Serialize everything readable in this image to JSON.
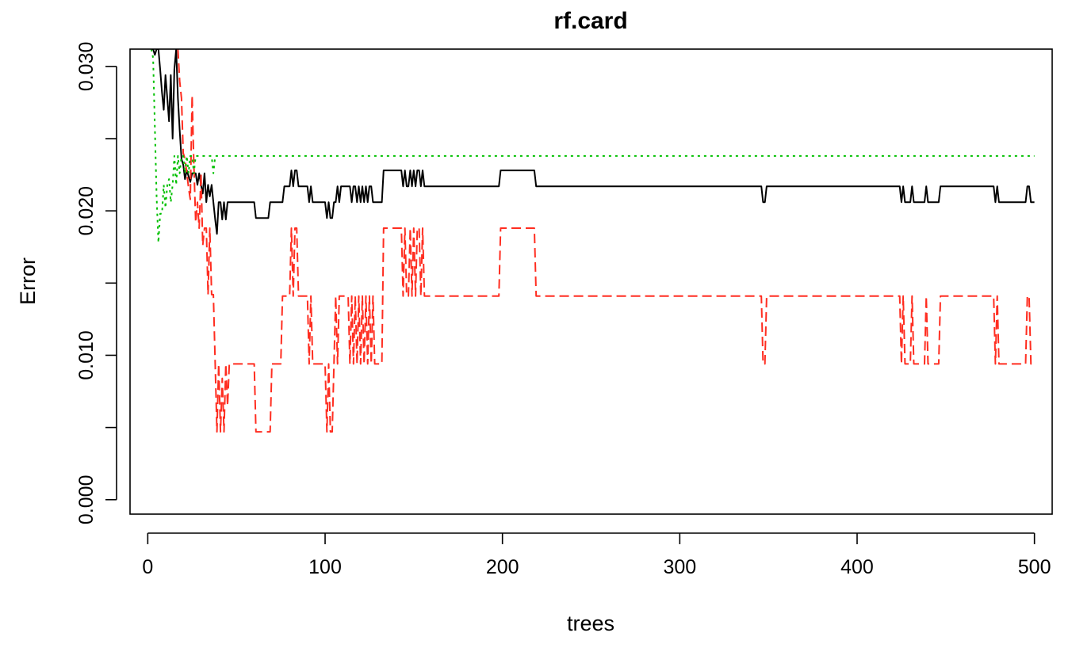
{
  "chart_data": {
    "type": "line",
    "title": "rf.card",
    "xlabel": "trees",
    "ylabel": "Error",
    "xlim": [
      -10,
      510
    ],
    "ylim": [
      -0.001,
      0.0312
    ],
    "x_ticks": [
      0,
      100,
      200,
      300,
      400,
      500
    ],
    "x_tick_labels": [
      "0",
      "100",
      "200",
      "300",
      "400",
      "500"
    ],
    "y_ticks": [
      0.0,
      0.005,
      0.01,
      0.015,
      0.02,
      0.025,
      0.03
    ],
    "y_tick_labels": [
      "0.000",
      "",
      "0.010",
      "",
      "0.020",
      "",
      "0.030"
    ],
    "grid": false,
    "legend": "none",
    "series": [
      {
        "color": "#000000",
        "dash": "solid",
        "points": [
          [
            2,
            0.0312
          ],
          [
            3,
            0.0312
          ],
          [
            4,
            0.0308
          ],
          [
            5,
            0.0312
          ],
          [
            6,
            0.0312
          ],
          [
            7,
            0.0298
          ],
          [
            8,
            0.0282
          ],
          [
            9,
            0.027
          ],
          [
            10,
            0.0294
          ],
          [
            11,
            0.0278
          ],
          [
            12,
            0.0262
          ],
          [
            13,
            0.0294
          ],
          [
            14,
            0.025
          ],
          [
            15,
            0.0298
          ],
          [
            16,
            0.0312
          ],
          [
            17,
            0.0278
          ],
          [
            18,
            0.0256
          ],
          [
            19,
            0.0236
          ],
          [
            20,
            0.0232
          ],
          [
            21,
            0.0222
          ],
          [
            22,
            0.0228
          ],
          [
            23,
            0.0224
          ],
          [
            24,
            0.022
          ],
          [
            25,
            0.0226
          ],
          [
            26,
            0.0226
          ],
          [
            27,
            0.0226
          ],
          [
            28,
            0.0218
          ],
          [
            29,
            0.0226
          ],
          [
            30,
            0.0218
          ],
          [
            31,
            0.0212
          ],
          [
            32,
            0.0226
          ],
          [
            33,
            0.0206
          ],
          [
            34,
            0.0218
          ],
          [
            35,
            0.021
          ],
          [
            36,
            0.0218
          ],
          [
            37,
            0.0206
          ],
          [
            38,
            0.0194
          ],
          [
            39,
            0.0184
          ],
          [
            40,
            0.0206
          ],
          [
            41,
            0.0206
          ],
          [
            42,
            0.0194
          ],
          [
            43,
            0.0206
          ],
          [
            44,
            0.0194
          ],
          [
            45,
            0.0206
          ],
          [
            47,
            0.0206
          ],
          [
            60,
            0.0206
          ],
          [
            61,
            0.0195
          ],
          [
            68,
            0.0195
          ],
          [
            69,
            0.0206
          ],
          [
            76,
            0.0206
          ],
          [
            77,
            0.0217
          ],
          [
            80,
            0.0217
          ],
          [
            81,
            0.0228
          ],
          [
            82,
            0.0217
          ],
          [
            83,
            0.0228
          ],
          [
            84,
            0.0228
          ],
          [
            85,
            0.0217
          ],
          [
            90,
            0.0217
          ],
          [
            91,
            0.0206
          ],
          [
            92,
            0.0217
          ],
          [
            93,
            0.0206
          ],
          [
            100,
            0.0206
          ],
          [
            101,
            0.0195
          ],
          [
            102,
            0.0206
          ],
          [
            103,
            0.0195
          ],
          [
            104,
            0.0195
          ],
          [
            105,
            0.0206
          ],
          [
            106,
            0.0206
          ],
          [
            107,
            0.0217
          ],
          [
            108,
            0.0206
          ],
          [
            109,
            0.0217
          ],
          [
            114,
            0.0217
          ],
          [
            115,
            0.0206
          ],
          [
            116,
            0.0217
          ],
          [
            117,
            0.0217
          ],
          [
            118,
            0.0206
          ],
          [
            119,
            0.0217
          ],
          [
            120,
            0.0206
          ],
          [
            121,
            0.0217
          ],
          [
            122,
            0.0206
          ],
          [
            123,
            0.0217
          ],
          [
            124,
            0.0206
          ],
          [
            125,
            0.0217
          ],
          [
            126,
            0.0217
          ],
          [
            127,
            0.0206
          ],
          [
            132,
            0.0206
          ],
          [
            133,
            0.0228
          ],
          [
            143,
            0.0228
          ],
          [
            144,
            0.0217
          ],
          [
            145,
            0.0228
          ],
          [
            146,
            0.0217
          ],
          [
            147,
            0.0217
          ],
          [
            148,
            0.0228
          ],
          [
            149,
            0.0217
          ],
          [
            150,
            0.0228
          ],
          [
            151,
            0.0217
          ],
          [
            152,
            0.0228
          ],
          [
            153,
            0.0228
          ],
          [
            154,
            0.0217
          ],
          [
            155,
            0.0228
          ],
          [
            156,
            0.0217
          ],
          [
            158,
            0.0217
          ],
          [
            159,
            0.0217
          ],
          [
            198,
            0.0217
          ],
          [
            199,
            0.0228
          ],
          [
            218,
            0.0228
          ],
          [
            219,
            0.0217
          ],
          [
            346,
            0.0217
          ],
          [
            347,
            0.0206
          ],
          [
            348,
            0.0206
          ],
          [
            349,
            0.0217
          ],
          [
            424,
            0.0217
          ],
          [
            425,
            0.0206
          ],
          [
            426,
            0.0217
          ],
          [
            427,
            0.0206
          ],
          [
            430,
            0.0206
          ],
          [
            431,
            0.0217
          ],
          [
            432,
            0.0206
          ],
          [
            438,
            0.0206
          ],
          [
            439,
            0.0217
          ],
          [
            440,
            0.0206
          ],
          [
            446,
            0.0206
          ],
          [
            447,
            0.0217
          ],
          [
            477,
            0.0217
          ],
          [
            478,
            0.0206
          ],
          [
            479,
            0.0217
          ],
          [
            480,
            0.0206
          ],
          [
            495,
            0.0206
          ],
          [
            496,
            0.0217
          ],
          [
            497,
            0.0217
          ],
          [
            498,
            0.0206
          ],
          [
            500,
            0.0206
          ]
        ]
      },
      {
        "color": "#ff2d20",
        "dash": "dashed",
        "points": [
          [
            17,
            0.0312
          ],
          [
            18,
            0.029
          ],
          [
            19,
            0.0278
          ],
          [
            20,
            0.024
          ],
          [
            21,
            0.0236
          ],
          [
            22,
            0.0226
          ],
          [
            23,
            0.0216
          ],
          [
            24,
            0.0208
          ],
          [
            25,
            0.028
          ],
          [
            26,
            0.0232
          ],
          [
            27,
            0.0192
          ],
          [
            28,
            0.0206
          ],
          [
            29,
            0.0188
          ],
          [
            30,
            0.0226
          ],
          [
            31,
            0.0176
          ],
          [
            32,
            0.0188
          ],
          [
            33,
            0.0188
          ],
          [
            34,
            0.0142
          ],
          [
            35,
            0.0188
          ],
          [
            36,
            0.0142
          ],
          [
            37,
            0.0142
          ],
          [
            38,
            0.0094
          ],
          [
            39,
            0.0047
          ],
          [
            40,
            0.0094
          ],
          [
            41,
            0.0047
          ],
          [
            42,
            0.0084
          ],
          [
            43,
            0.0047
          ],
          [
            44,
            0.0094
          ],
          [
            45,
            0.0065
          ],
          [
            46,
            0.0094
          ],
          [
            47,
            0.0094
          ],
          [
            60,
            0.0094
          ],
          [
            61,
            0.0047
          ],
          [
            69,
            0.0047
          ],
          [
            70,
            0.0094
          ],
          [
            75,
            0.0094
          ],
          [
            76,
            0.0141
          ],
          [
            80,
            0.0141
          ],
          [
            81,
            0.0188
          ],
          [
            82,
            0.0141
          ],
          [
            83,
            0.0188
          ],
          [
            84,
            0.0188
          ],
          [
            85,
            0.0141
          ],
          [
            90,
            0.0141
          ],
          [
            91,
            0.0094
          ],
          [
            92,
            0.0141
          ],
          [
            93,
            0.0094
          ],
          [
            100,
            0.0094
          ],
          [
            101,
            0.0047
          ],
          [
            102,
            0.0094
          ],
          [
            103,
            0.0047
          ],
          [
            104,
            0.0047
          ],
          [
            105,
            0.0094
          ],
          [
            106,
            0.0141
          ],
          [
            107,
            0.0094
          ],
          [
            108,
            0.0141
          ],
          [
            113,
            0.0141
          ],
          [
            114,
            0.0094
          ],
          [
            115,
            0.0141
          ],
          [
            116,
            0.0094
          ],
          [
            117,
            0.0141
          ],
          [
            118,
            0.0094
          ],
          [
            119,
            0.0141
          ],
          [
            120,
            0.0094
          ],
          [
            121,
            0.0141
          ],
          [
            122,
            0.0094
          ],
          [
            123,
            0.0141
          ],
          [
            124,
            0.0094
          ],
          [
            125,
            0.0141
          ],
          [
            126,
            0.0094
          ],
          [
            127,
            0.0141
          ],
          [
            128,
            0.0094
          ],
          [
            132,
            0.0094
          ],
          [
            133,
            0.0188
          ],
          [
            143,
            0.0188
          ],
          [
            144,
            0.0141
          ],
          [
            145,
            0.0188
          ],
          [
            146,
            0.0141
          ],
          [
            147,
            0.0141
          ],
          [
            148,
            0.0188
          ],
          [
            149,
            0.0141
          ],
          [
            150,
            0.0188
          ],
          [
            151,
            0.0141
          ],
          [
            152,
            0.0188
          ],
          [
            153,
            0.0188
          ],
          [
            154,
            0.0141
          ],
          [
            155,
            0.0188
          ],
          [
            156,
            0.0141
          ],
          [
            158,
            0.0141
          ],
          [
            159,
            0.0141
          ],
          [
            198,
            0.0141
          ],
          [
            199,
            0.0188
          ],
          [
            218,
            0.0188
          ],
          [
            219,
            0.0141
          ],
          [
            346,
            0.0141
          ],
          [
            347,
            0.0094
          ],
          [
            348,
            0.0094
          ],
          [
            349,
            0.0141
          ],
          [
            424,
            0.0141
          ],
          [
            425,
            0.0094
          ],
          [
            426,
            0.0141
          ],
          [
            427,
            0.0094
          ],
          [
            430,
            0.0094
          ],
          [
            431,
            0.0141
          ],
          [
            432,
            0.0094
          ],
          [
            438,
            0.0094
          ],
          [
            439,
            0.0141
          ],
          [
            440,
            0.0094
          ],
          [
            446,
            0.0094
          ],
          [
            447,
            0.0141
          ],
          [
            477,
            0.0141
          ],
          [
            478,
            0.0094
          ],
          [
            479,
            0.0141
          ],
          [
            480,
            0.0094
          ],
          [
            495,
            0.0094
          ],
          [
            496,
            0.0141
          ],
          [
            497,
            0.0141
          ],
          [
            498,
            0.0094
          ],
          [
            500,
            0.0094
          ]
        ]
      },
      {
        "color": "#00c000",
        "dash": "dotted",
        "points": [
          [
            2,
            0.0312
          ],
          [
            3,
            0.0306
          ],
          [
            4,
            0.0258
          ],
          [
            5,
            0.021
          ],
          [
            6,
            0.0178
          ],
          [
            7,
            0.0198
          ],
          [
            8,
            0.0198
          ],
          [
            9,
            0.0218
          ],
          [
            10,
            0.0202
          ],
          [
            11,
            0.0218
          ],
          [
            12,
            0.0222
          ],
          [
            13,
            0.0206
          ],
          [
            14,
            0.0218
          ],
          [
            15,
            0.0238
          ],
          [
            16,
            0.0218
          ],
          [
            17,
            0.0238
          ],
          [
            18,
            0.0226
          ],
          [
            19,
            0.0238
          ],
          [
            20,
            0.0238
          ],
          [
            21,
            0.0226
          ],
          [
            22,
            0.0238
          ],
          [
            23,
            0.0226
          ],
          [
            24,
            0.0238
          ],
          [
            25,
            0.0238
          ],
          [
            26,
            0.0226
          ],
          [
            27,
            0.0238
          ],
          [
            28,
            0.0238
          ],
          [
            36,
            0.0238
          ],
          [
            37,
            0.0226
          ],
          [
            38,
            0.0238
          ],
          [
            39,
            0.0238
          ],
          [
            500,
            0.0238
          ]
        ]
      }
    ]
  }
}
